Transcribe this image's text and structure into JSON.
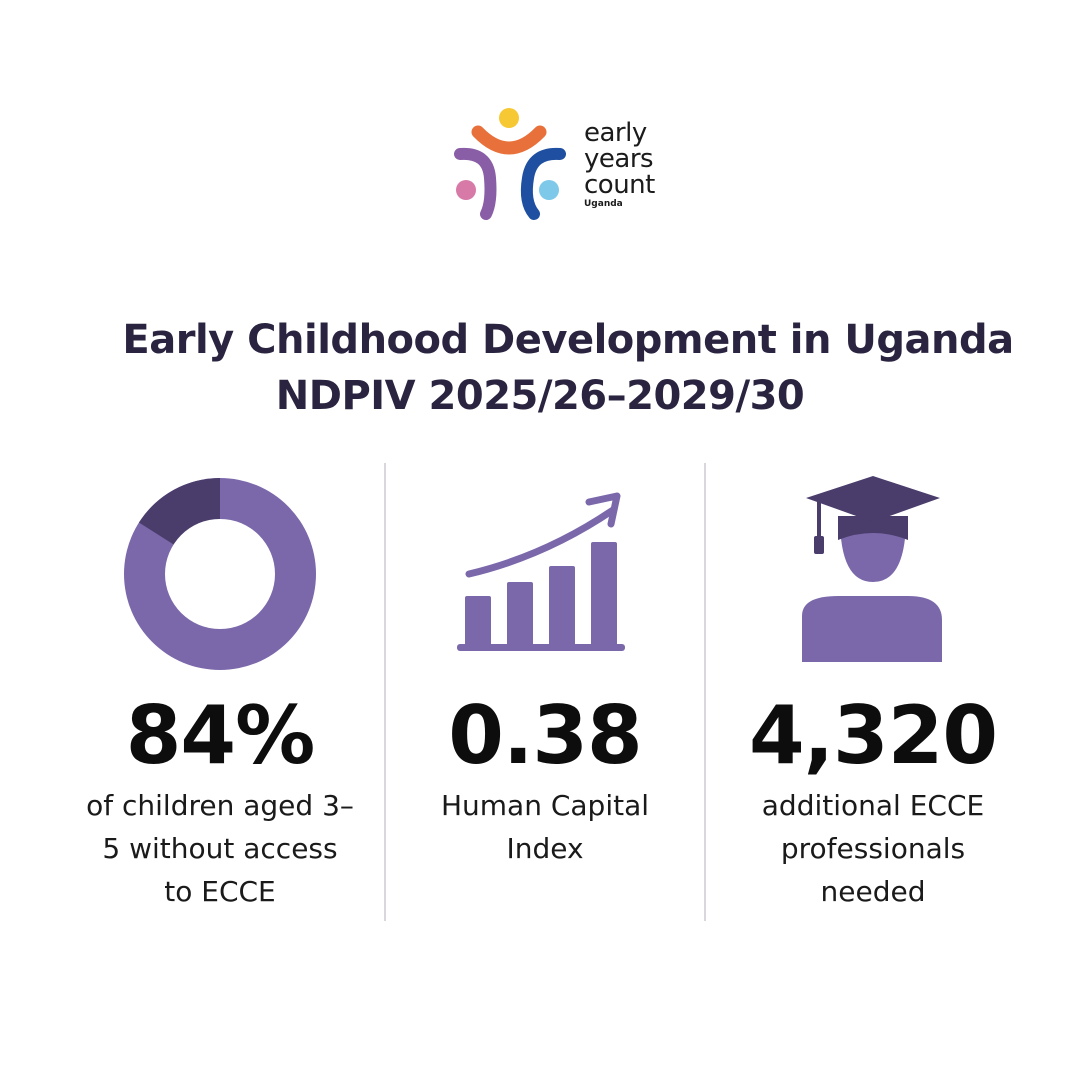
{
  "logo": {
    "line1": "early",
    "line2": "years",
    "line3": "count",
    "country": "Uganda"
  },
  "title": {
    "line1": "Early Childhood Development in Uganda",
    "line2": "NDPIV 2025/26–2029/30"
  },
  "stats": [
    {
      "value": "84%",
      "label_lines": [
        "of children aged 3–",
        "5 without access",
        "to ECCE"
      ],
      "icon": "donut-chart-icon",
      "share": 0.84
    },
    {
      "value": "0.38",
      "label_lines": [
        "Human Capital",
        "Index"
      ],
      "icon": "bar-chart-growth-icon"
    },
    {
      "value": "4,320",
      "label_lines": [
        "additional ECCE",
        "professionals",
        "needed"
      ],
      "icon": "graduate-icon"
    }
  ],
  "colors": {
    "purple": "#7b68ab",
    "dark_purple": "#4a3d6b",
    "title": "#2b2440",
    "divider": "#d9d7dc",
    "logo_orange": "#e8703a",
    "logo_yellow": "#f6c833",
    "logo_purple": "#8a5ea6",
    "logo_navy": "#1f4fa0",
    "logo_pink": "#d77aa8",
    "logo_sky": "#7ec8ea"
  }
}
